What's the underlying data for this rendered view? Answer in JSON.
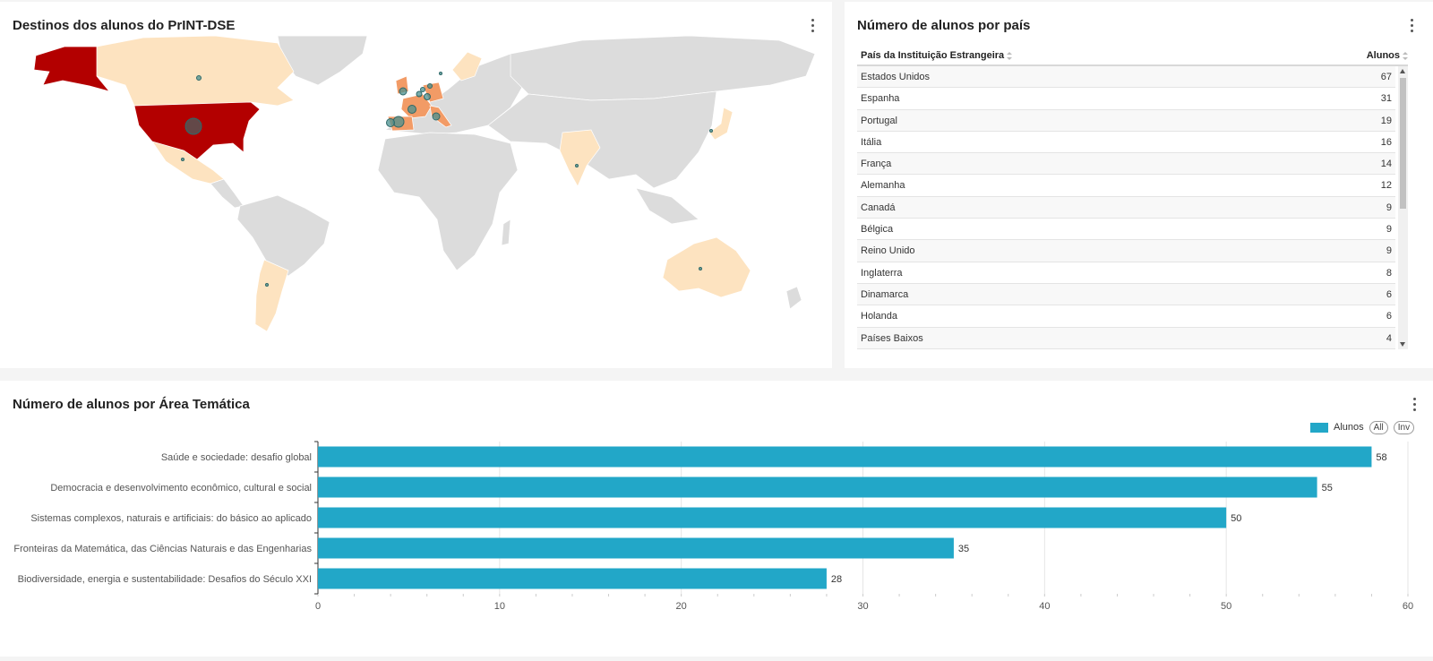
{
  "map_panel": {
    "title": "Destinos dos alunos do PrINT-DSE",
    "colors": {
      "land": "#dcdcdc",
      "low": "#fde3c0",
      "mid": "#f29b66",
      "high": "#b30000",
      "bubble": "#4a9090"
    }
  },
  "table_panel": {
    "title": "Número de alunos por país",
    "col_country": "País da Instituição Estrangeira",
    "col_students": "Alunos",
    "rows": [
      {
        "country": "Estados Unidos",
        "students": "67"
      },
      {
        "country": "Espanha",
        "students": "31"
      },
      {
        "country": "Portugal",
        "students": "19"
      },
      {
        "country": "Itália",
        "students": "16"
      },
      {
        "country": "França",
        "students": "14"
      },
      {
        "country": "Alemanha",
        "students": "12"
      },
      {
        "country": "Canadá",
        "students": "9"
      },
      {
        "country": "Bélgica",
        "students": "9"
      },
      {
        "country": "Reino Unido",
        "students": "9"
      },
      {
        "country": "Inglaterra",
        "students": "8"
      },
      {
        "country": "Dinamarca",
        "students": "6"
      },
      {
        "country": "Holanda",
        "students": "6"
      },
      {
        "country": "Países Baixos",
        "students": "4"
      }
    ]
  },
  "bar_panel": {
    "title": "Número de alunos por Área Temática",
    "legend_label": "Alunos",
    "btn_all": "All",
    "btn_inv": "Inv"
  },
  "chart_data": {
    "type": "bar",
    "orientation": "horizontal",
    "categories": [
      "Saúde e sociedade: desafio global",
      "Democracia e desenvolvimento econômico, cultural e social",
      "Sistemas complexos, naturais e artificiais: do básico ao aplicado",
      "Fronteiras da Matemática, das Ciências Naturais e das Engenharias",
      "Biodiversidade, energia e sustentabilidade: Desafios do Século XXI"
    ],
    "series": [
      {
        "name": "Alunos",
        "values": [
          58,
          55,
          50,
          35,
          28
        ],
        "color": "#22a7c8"
      }
    ],
    "xlim": [
      0,
      60
    ],
    "xticks": [
      0,
      10,
      20,
      30,
      40,
      50,
      60
    ],
    "grid": true,
    "legend": "top-right",
    "data_labels": true
  }
}
